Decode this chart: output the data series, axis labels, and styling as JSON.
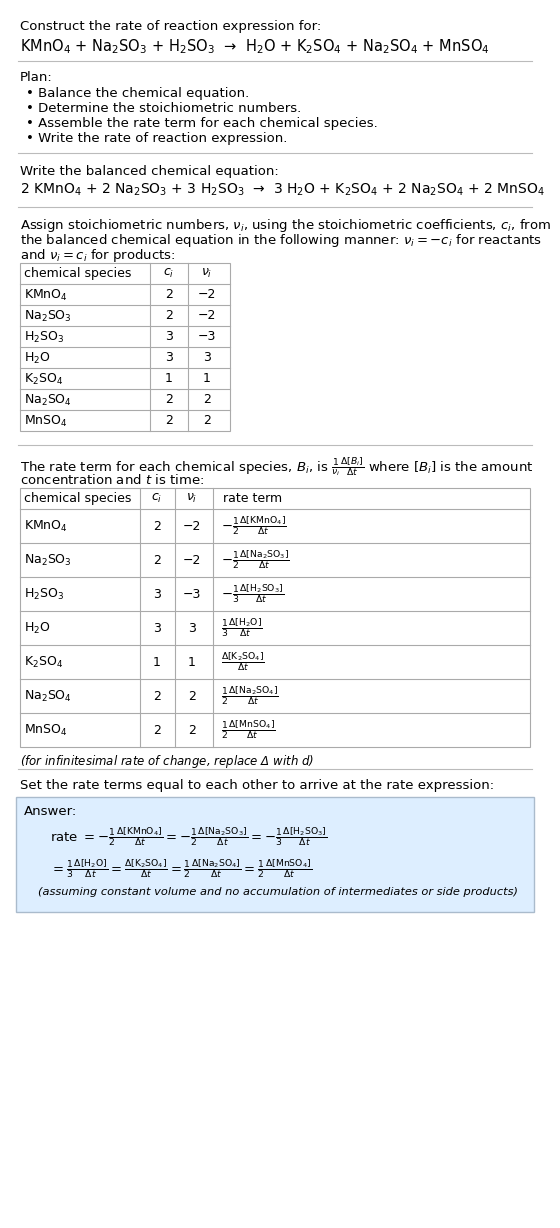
{
  "title_line1": "Construct the rate of reaction expression for:",
  "title_line2": "KMnO$_4$ + Na$_2$SO$_3$ + H$_2$SO$_3$  →  H$_2$O + K$_2$SO$_4$ + Na$_2$SO$_4$ + MnSO$_4$",
  "plan_header": "Plan:",
  "plan_items": [
    "• Balance the chemical equation.",
    "• Determine the stoichiometric numbers.",
    "• Assemble the rate term for each chemical species.",
    "• Write the rate of reaction expression."
  ],
  "balanced_header": "Write the balanced chemical equation:",
  "balanced_eq": "2 KMnO$_4$ + 2 Na$_2$SO$_3$ + 3 H$_2$SO$_3$  →  3 H$_2$O + K$_2$SO$_4$ + 2 Na$_2$SO$_4$ + 2 MnSO$_4$",
  "stoich_header1": "Assign stoichiometric numbers, $\\nu_i$, using the stoichiometric coefficients, $c_i$, from",
  "stoich_header2": "the balanced chemical equation in the following manner: $\\nu_i = -c_i$ for reactants",
  "stoich_header3": "and $\\nu_i = c_i$ for products:",
  "table1_cols": [
    "chemical species",
    "$c_i$",
    "$\\nu_i$"
  ],
  "table1_rows": [
    [
      "KMnO$_4$",
      "2",
      "−2"
    ],
    [
      "Na$_2$SO$_3$",
      "2",
      "−2"
    ],
    [
      "H$_2$SO$_3$",
      "3",
      "−3"
    ],
    [
      "H$_2$O",
      "3",
      "3"
    ],
    [
      "K$_2$SO$_4$",
      "1",
      "1"
    ],
    [
      "Na$_2$SO$_4$",
      "2",
      "2"
    ],
    [
      "MnSO$_4$",
      "2",
      "2"
    ]
  ],
  "rate_header1": "The rate term for each chemical species, $B_i$, is $\\frac{1}{\\nu_i}\\frac{\\Delta[B_i]}{\\Delta t}$ where $[B_i]$ is the amount",
  "rate_header2": "concentration and $t$ is time:",
  "table2_cols": [
    "chemical species",
    "$c_i$",
    "$\\nu_i$",
    "rate term"
  ],
  "table2_rows": [
    [
      "KMnO$_4$",
      "2",
      "−2",
      "$-\\frac{1}{2}\\frac{\\Delta[\\mathrm{KMnO_4}]}{\\Delta t}$"
    ],
    [
      "Na$_2$SO$_3$",
      "2",
      "−2",
      "$-\\frac{1}{2}\\frac{\\Delta[\\mathrm{Na_2SO_3}]}{\\Delta t}$"
    ],
    [
      "H$_2$SO$_3$",
      "3",
      "−3",
      "$-\\frac{1}{3}\\frac{\\Delta[\\mathrm{H_2SO_3}]}{\\Delta t}$"
    ],
    [
      "H$_2$O",
      "3",
      "3",
      "$\\frac{1}{3}\\frac{\\Delta[\\mathrm{H_2O}]}{\\Delta t}$"
    ],
    [
      "K$_2$SO$_4$",
      "1",
      "1",
      "$\\frac{\\Delta[\\mathrm{K_2SO_4}]}{\\Delta t}$"
    ],
    [
      "Na$_2$SO$_4$",
      "2",
      "2",
      "$\\frac{1}{2}\\frac{\\Delta[\\mathrm{Na_2SO_4}]}{\\Delta t}$"
    ],
    [
      "MnSO$_4$",
      "2",
      "2",
      "$\\frac{1}{2}\\frac{\\Delta[\\mathrm{MnSO_4}]}{\\Delta t}$"
    ]
  ],
  "infinitesimal_note": "(for infinitesimal rate of change, replace Δ with $d$)",
  "set_rate_text": "Set the rate terms equal to each other to arrive at the rate expression:",
  "answer_label": "Answer:",
  "answer_line1": "rate $= -\\frac{1}{2}\\frac{\\Delta[\\mathrm{KMnO_4}]}{\\Delta t} = -\\frac{1}{2}\\frac{\\Delta[\\mathrm{Na_2SO_3}]}{\\Delta t} = -\\frac{1}{3}\\frac{\\Delta[\\mathrm{H_2SO_3}]}{\\Delta t}$",
  "answer_line2": "$= \\frac{1}{3}\\frac{\\Delta[\\mathrm{H_2O}]}{\\Delta t} = \\frac{\\Delta[\\mathrm{K_2SO_4}]}{\\Delta t} = \\frac{1}{2}\\frac{\\Delta[\\mathrm{Na_2SO_4}]}{\\Delta t} = \\frac{1}{2}\\frac{\\Delta[\\mathrm{MnSO_4}]}{\\Delta t}$",
  "answer_note": "(assuming constant volume and no accumulation of intermediates or side products)",
  "answer_bg_color": "#ddeeff",
  "table_border_color": "#aaaaaa",
  "bg_color": "#ffffff",
  "text_color": "#000000"
}
